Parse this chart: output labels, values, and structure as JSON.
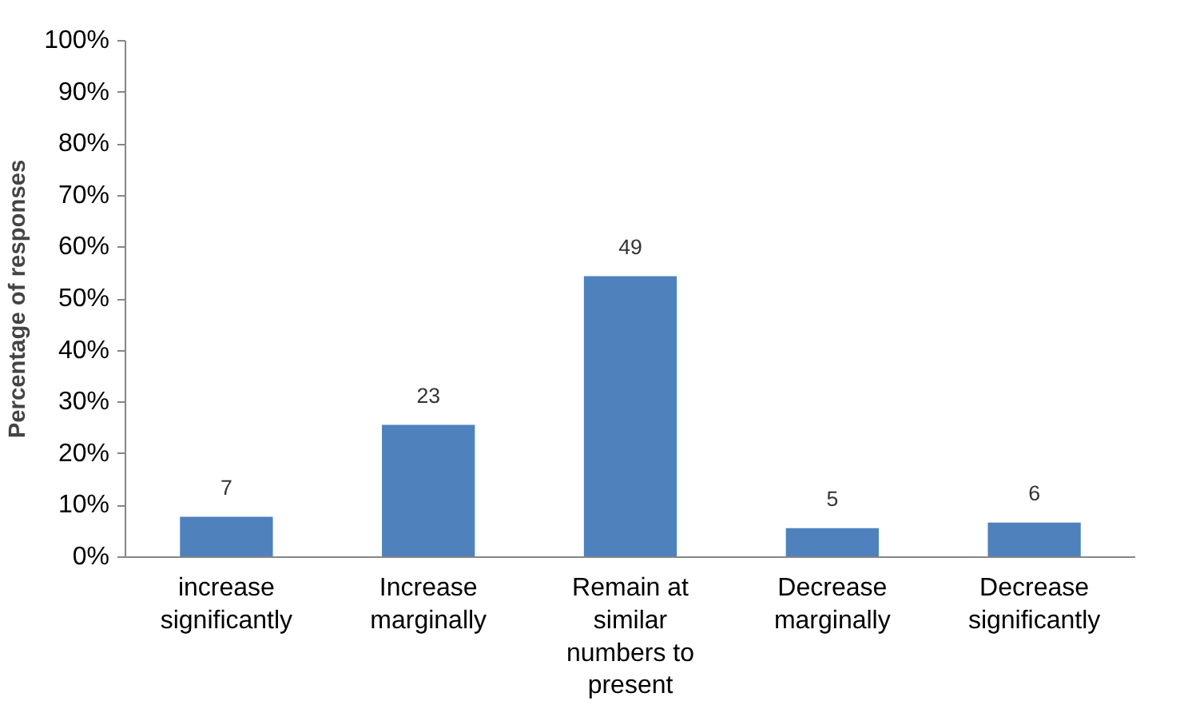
{
  "chart_data": {
    "type": "bar",
    "ylabel": "Percentage of responses",
    "categories": [
      "increase significantly",
      "Increase marginally",
      "Remain at similar numbers to present",
      "Decrease marginally",
      "Decrease significantly"
    ],
    "values": [
      7.8,
      25.6,
      54.4,
      5.6,
      6.7
    ],
    "annotations": [
      {
        "text": "7",
        "x": "increase significantly",
        "y": 7.8
      },
      {
        "text": "23",
        "x": "Increase marginally",
        "y": 25.6
      },
      {
        "text": "49",
        "x": "Remain at similar numbers to present",
        "y": 54.4
      },
      {
        "text": "5",
        "x": "Decrease marginally",
        "y": 5.6
      },
      {
        "text": "6",
        "x": "Decrease significantly",
        "y": 6.7
      }
    ],
    "color": "#4f81bd",
    "ylim": [
      0,
      100
    ],
    "yticks": [
      {
        "value": 0,
        "label": "0%"
      },
      {
        "value": 10,
        "label": "10%"
      },
      {
        "value": 20,
        "label": "20%"
      },
      {
        "value": 30,
        "label": "30%"
      },
      {
        "value": 40,
        "label": "40%"
      },
      {
        "value": 50,
        "label": "50%"
      },
      {
        "value": 60,
        "label": "60%"
      },
      {
        "value": 70,
        "label": "70%"
      },
      {
        "value": 80,
        "label": "80%"
      },
      {
        "value": 90,
        "label": "90%"
      },
      {
        "value": 100,
        "label": "100%"
      }
    ],
    "grid": false
  }
}
